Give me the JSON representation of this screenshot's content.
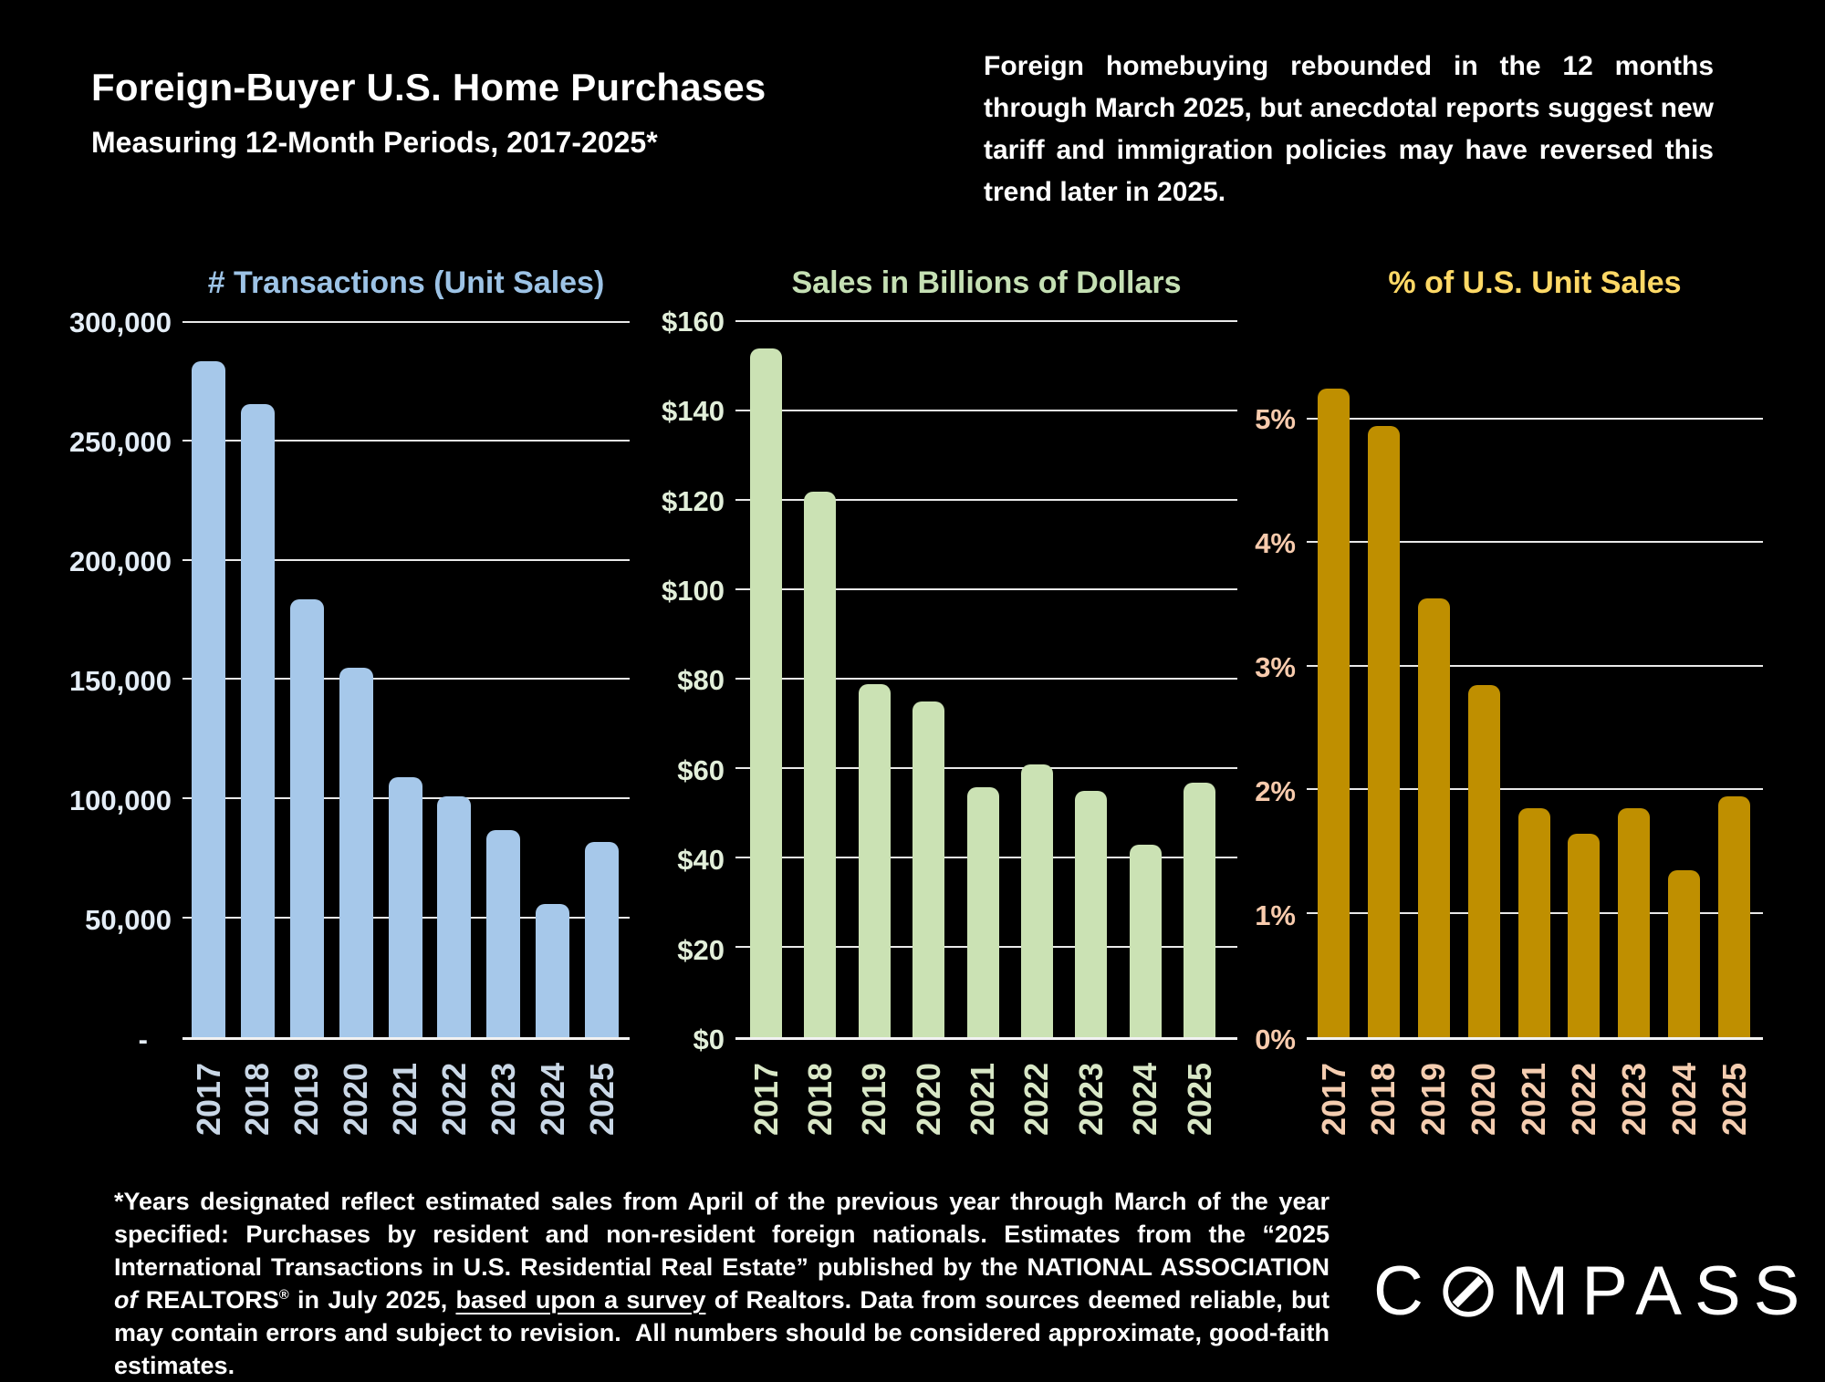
{
  "page": {
    "colors": {
      "background": "#000000",
      "text": "#FFFFFF",
      "gridline": "#E9E9E9",
      "baseline": "#F2F2F2"
    }
  },
  "header": {
    "title": "Foreign-Buyer U.S. Home Purchases",
    "subtitle": "Measuring 12-Month Periods, 2017-2025*"
  },
  "intro": {
    "text": "Foreign homebuying rebounded in the 12 months through March 2025, but anecdotal reports suggest new tariff and immigration policies may have reversed this trend later in 2025."
  },
  "chart_data": [
    {
      "type": "bar",
      "title": "# Transactions (Unit Sales)",
      "xlabel": "",
      "ylabel": "# Transactions (Unit Sales)",
      "categories": [
        "2017",
        "2018",
        "2019",
        "2020",
        "2021",
        "2022",
        "2023",
        "2024",
        "2025"
      ],
      "values": [
        284000,
        266000,
        184000,
        155000,
        109000,
        101000,
        87000,
        56000,
        82000
      ],
      "y_ticks": [
        {
          "label": "300,000",
          "value": 300000
        },
        {
          "label": "250,000",
          "value": 250000
        },
        {
          "label": "200,000",
          "value": 200000
        },
        {
          "label": "150,000",
          "value": 150000
        },
        {
          "label": "100,000",
          "value": 100000
        },
        {
          "label": "50,000",
          "value": 50000
        },
        {
          "label": "-",
          "value": 0
        }
      ],
      "ylim": [
        0,
        301500
      ],
      "grid": true,
      "legend": "none",
      "colors": {
        "bar": "#A6C8EA",
        "title": "#9DC3E6",
        "ticks": "#E4EDF6",
        "years": "#C9D7E6"
      }
    },
    {
      "type": "bar",
      "title": "Sales in Billions of Dollars",
      "xlabel": "",
      "ylabel": "Sales in Billions of Dollars",
      "categories": [
        "2017",
        "2018",
        "2019",
        "2020",
        "2021",
        "2022",
        "2023",
        "2024",
        "2025"
      ],
      "values": [
        154,
        122,
        79,
        75,
        56,
        61,
        55,
        43,
        57
      ],
      "y_ticks": [
        {
          "label": "$160",
          "value": 160
        },
        {
          "label": "$140",
          "value": 140
        },
        {
          "label": "$120",
          "value": 120
        },
        {
          "label": "$100",
          "value": 100
        },
        {
          "label": "$80",
          "value": 80
        },
        {
          "label": "$60",
          "value": 60
        },
        {
          "label": "$40",
          "value": 40
        },
        {
          "label": "$20",
          "value": 20
        },
        {
          "label": "$0",
          "value": 0
        }
      ],
      "ylim": [
        0,
        160.6
      ],
      "grid": true,
      "legend": "none",
      "colors": {
        "bar": "#CBE2B4",
        "title": "#C5E0B4",
        "ticks": "#E2EFDA",
        "years": "#D8E7C6"
      }
    },
    {
      "type": "bar",
      "title": "% of U.S. Unit Sales",
      "xlabel": "",
      "ylabel": "% of U.S. Unit Sales",
      "categories": [
        "2017",
        "2018",
        "2019",
        "2020",
        "2021",
        "2022",
        "2023",
        "2024",
        "2025"
      ],
      "values": [
        5.25,
        4.95,
        3.55,
        2.85,
        1.85,
        1.65,
        1.85,
        1.35,
        1.95
      ],
      "y_ticks": [
        {
          "label": "5%",
          "value": 5
        },
        {
          "label": "4%",
          "value": 4
        },
        {
          "label": "3%",
          "value": 3
        },
        {
          "label": "2%",
          "value": 2
        },
        {
          "label": "1%",
          "value": 1
        },
        {
          "label": "0%",
          "value": 0
        }
      ],
      "ylim": [
        0,
        5.81
      ],
      "grid": true,
      "legend": "none",
      "colors": {
        "bar": "#BF8F00",
        "title": "#FFD966",
        "ticks": "#F8CBAD",
        "years": "#F4CDB0"
      }
    }
  ],
  "footnote": {
    "segments": [
      {
        "t": "*Years designated reflect estimated sales from April of the previous year through March of the year specified: Purchases by resident and non-resident foreign nationals. Estimates from the “2025 International Transactions in U.S. Residential Real Estate” published by the NATIONAL ASSOCIATION "
      },
      {
        "t": "of",
        "style": "italic"
      },
      {
        "t": " REALTORS"
      },
      {
        "t": "®",
        "style": "sup"
      },
      {
        "t": " in July 2025, "
      },
      {
        "t": "based upon a survey",
        "style": "underline"
      },
      {
        "t": " of Realtors. Data from sources deemed reliable, but may contain errors and subject to revision.  All numbers should be considered approximate, good-faith estimates."
      }
    ]
  },
  "logo": {
    "word": "COMPASS",
    "before_o": "C",
    "after_o": "MPASS"
  }
}
